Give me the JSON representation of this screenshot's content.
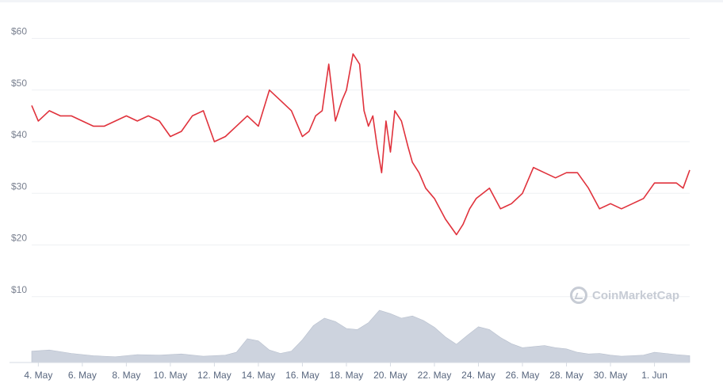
{
  "chart_data": {
    "type": "line",
    "title": "",
    "xlabel": "",
    "ylabel": "",
    "y_tick_labels": [
      "$10",
      "$20",
      "$30",
      "$40",
      "$50",
      "$60"
    ],
    "y_ticks": [
      10,
      20,
      30,
      40,
      50,
      60
    ],
    "ylim": [
      0,
      61
    ],
    "x_tick_labels": [
      "4. May",
      "6. May",
      "8. May",
      "10. May",
      "12. May",
      "14. May",
      "16. May",
      "18. May",
      "20. May",
      "22. May",
      "24. May",
      "26. May",
      "28. May",
      "30. May",
      "1. Jun"
    ],
    "grid": true,
    "price_color": "#e0323c",
    "volume_color": "#cdd3de",
    "series": [
      {
        "kind": "price",
        "x": [
          3.7,
          4.0,
          4.5,
          5.0,
          5.5,
          6.0,
          6.5,
          7.0,
          7.5,
          8.0,
          8.5,
          9.0,
          9.5,
          10.0,
          10.5,
          11.0,
          11.5,
          12.0,
          12.5,
          13.0,
          13.5,
          14.0,
          14.5,
          15.0,
          15.5,
          16.0,
          16.3,
          16.6,
          16.9,
          17.2,
          17.5,
          17.8,
          18.0,
          18.3,
          18.6,
          18.8,
          19.0,
          19.2,
          19.4,
          19.6,
          19.8,
          20.0,
          20.2,
          20.5,
          20.8,
          21.0,
          21.3,
          21.6,
          22.0,
          22.5,
          23.0,
          23.3,
          23.6,
          23.9,
          24.2,
          24.5,
          25.0,
          25.5,
          26.0,
          26.5,
          27.0,
          27.5,
          28.0,
          28.5,
          29.0,
          29.5,
          30.0,
          30.5,
          31.0,
          31.5,
          32.0,
          32.5,
          33.0,
          33.3,
          33.6
        ],
        "y": [
          47,
          44,
          46,
          45,
          45,
          44,
          43,
          43,
          44,
          45,
          44,
          45,
          44,
          41,
          42,
          45,
          46,
          40,
          41,
          43,
          45,
          43,
          50,
          48,
          46,
          41,
          42,
          45,
          46,
          55,
          44,
          48,
          50,
          57,
          55,
          46,
          43,
          45,
          39,
          34,
          44,
          38,
          46,
          44,
          39,
          36,
          34,
          31,
          29,
          25,
          22,
          24,
          27,
          29,
          30,
          31,
          27,
          28,
          30,
          35,
          34,
          33,
          34,
          34,
          31,
          27,
          28,
          27,
          28,
          29,
          32,
          32,
          32,
          31,
          34.5
        ]
      },
      {
        "kind": "volume",
        "x": [
          3.7,
          4.5,
          5.5,
          6.5,
          7.5,
          8.5,
          9.5,
          10.5,
          11.5,
          12.5,
          13.0,
          13.5,
          14.0,
          14.5,
          15.0,
          15.5,
          16.0,
          16.5,
          17.0,
          17.5,
          18.0,
          18.5,
          19.0,
          19.5,
          20.0,
          20.5,
          21.0,
          21.5,
          22.0,
          22.5,
          23.0,
          23.5,
          24.0,
          24.5,
          25.0,
          25.5,
          26.0,
          26.5,
          27.0,
          27.5,
          28.0,
          28.5,
          29.0,
          29.5,
          30.0,
          30.5,
          31.0,
          31.5,
          32.0,
          32.5,
          33.0,
          33.6
        ],
        "y": [
          2.0,
          2.2,
          1.6,
          1.2,
          1.0,
          1.4,
          1.3,
          1.5,
          1.1,
          1.3,
          1.8,
          4.2,
          3.8,
          2.2,
          1.6,
          2.0,
          4.0,
          6.5,
          7.8,
          7.2,
          6.0,
          5.8,
          7.0,
          9.2,
          8.6,
          7.8,
          8.2,
          7.4,
          6.2,
          4.5,
          3.2,
          4.8,
          6.3,
          5.8,
          4.4,
          3.3,
          2.6,
          2.8,
          3.0,
          2.6,
          2.4,
          1.8,
          1.5,
          1.6,
          1.3,
          1.1,
          1.2,
          1.3,
          1.8,
          1.6,
          1.4,
          1.2
        ]
      }
    ]
  },
  "watermark": {
    "text": "CoinMarketCap",
    "icon": "coinmarketcap-logo-icon"
  }
}
